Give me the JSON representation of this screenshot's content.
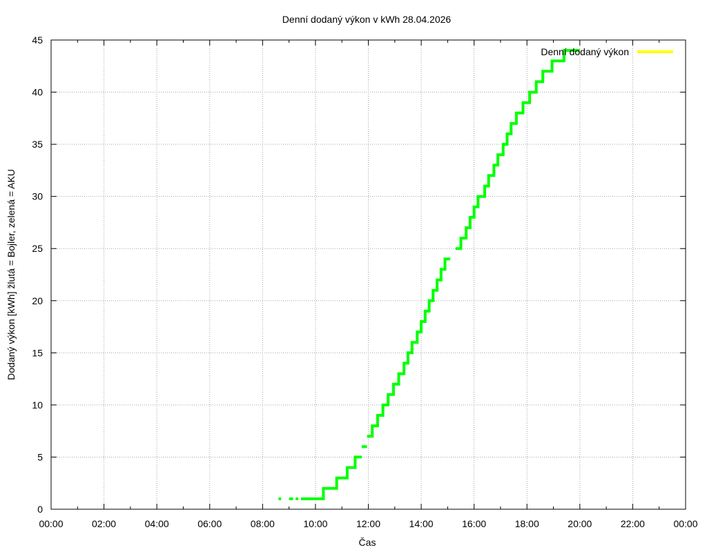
{
  "chart_data": {
    "type": "line",
    "title": "Denní dodaný výkon v kWh 28.04.2026",
    "xlabel": "Čas",
    "ylabel": "Dodaný výkon [kWh]  žlutá = Bojler, zelená = AKU",
    "xlim": [
      0,
      24
    ],
    "ylim": [
      0,
      45
    ],
    "x_ticks": [
      0,
      2,
      4,
      6,
      8,
      10,
      12,
      14,
      16,
      18,
      20,
      22,
      24
    ],
    "x_tick_labels": [
      "00:00",
      "02:00",
      "04:00",
      "06:00",
      "08:00",
      "10:00",
      "12:00",
      "14:00",
      "16:00",
      "18:00",
      "20:00",
      "22:00",
      "00:00"
    ],
    "y_ticks": [
      0,
      5,
      10,
      15,
      20,
      25,
      30,
      35,
      40,
      45
    ],
    "y_tick_labels": [
      "0",
      "5",
      "10",
      "15",
      "20",
      "25",
      "30",
      "35",
      "40",
      "45"
    ],
    "grid": true,
    "legend_position": "top-right",
    "series": [
      {
        "name": "Denní dodaný výkon",
        "color": "#ffff00",
        "values": []
      },
      {
        "color": "#00ff00",
        "style": "step",
        "segments": [
          [
            [
              8.6,
              1
            ],
            [
              8.7,
              1
            ]
          ],
          [
            [
              9.0,
              1
            ],
            [
              9.15,
              1
            ]
          ],
          [
            [
              9.25,
              1
            ],
            [
              9.35,
              1
            ]
          ],
          [
            [
              9.45,
              1
            ],
            [
              10.3,
              1
            ],
            [
              10.3,
              2
            ],
            [
              10.8,
              2
            ],
            [
              10.8,
              3
            ],
            [
              11.2,
              3
            ],
            [
              11.2,
              4
            ],
            [
              11.5,
              4
            ],
            [
              11.5,
              5
            ],
            [
              11.75,
              5
            ]
          ],
          [
            [
              11.75,
              6
            ],
            [
              11.95,
              6
            ]
          ],
          [
            [
              11.95,
              7
            ],
            [
              12.15,
              7
            ],
            [
              12.15,
              8
            ],
            [
              12.35,
              8
            ],
            [
              12.35,
              9
            ],
            [
              12.55,
              9
            ],
            [
              12.55,
              10
            ],
            [
              12.75,
              10
            ],
            [
              12.75,
              11
            ],
            [
              12.95,
              11
            ],
            [
              12.95,
              12
            ],
            [
              13.15,
              12
            ],
            [
              13.15,
              13
            ],
            [
              13.35,
              13
            ],
            [
              13.35,
              14
            ],
            [
              13.5,
              14
            ],
            [
              13.5,
              15
            ],
            [
              13.65,
              15
            ],
            [
              13.65,
              16
            ],
            [
              13.85,
              16
            ],
            [
              13.85,
              17
            ],
            [
              14.0,
              17
            ],
            [
              14.0,
              18
            ],
            [
              14.15,
              18
            ],
            [
              14.15,
              19
            ],
            [
              14.3,
              19
            ],
            [
              14.3,
              20
            ],
            [
              14.45,
              20
            ],
            [
              14.45,
              21
            ],
            [
              14.6,
              21
            ],
            [
              14.6,
              22
            ],
            [
              14.75,
              22
            ],
            [
              14.75,
              23
            ],
            [
              14.9,
              23
            ],
            [
              14.9,
              24
            ],
            [
              15.1,
              24
            ]
          ],
          [
            [
              15.3,
              25
            ],
            [
              15.5,
              25
            ],
            [
              15.5,
              26
            ],
            [
              15.7,
              26
            ],
            [
              15.7,
              27
            ],
            [
              15.85,
              27
            ],
            [
              15.85,
              28
            ],
            [
              16.0,
              28
            ],
            [
              16.0,
              29
            ],
            [
              16.15,
              29
            ],
            [
              16.15,
              30
            ],
            [
              16.4,
              30
            ],
            [
              16.4,
              31
            ],
            [
              16.55,
              31
            ],
            [
              16.55,
              32
            ],
            [
              16.75,
              32
            ],
            [
              16.75,
              33
            ],
            [
              16.9,
              33
            ],
            [
              16.9,
              34
            ],
            [
              17.1,
              34
            ],
            [
              17.1,
              35
            ],
            [
              17.25,
              35
            ],
            [
              17.25,
              36
            ],
            [
              17.4,
              36
            ],
            [
              17.4,
              37
            ],
            [
              17.6,
              37
            ],
            [
              17.6,
              38
            ],
            [
              17.85,
              38
            ],
            [
              17.85,
              39
            ],
            [
              18.1,
              39
            ],
            [
              18.1,
              40
            ],
            [
              18.35,
              40
            ],
            [
              18.35,
              41
            ],
            [
              18.6,
              41
            ],
            [
              18.6,
              42
            ],
            [
              18.95,
              42
            ],
            [
              18.95,
              43
            ],
            [
              19.4,
              43
            ],
            [
              19.4,
              44
            ],
            [
              20.0,
              44
            ]
          ]
        ]
      }
    ]
  }
}
